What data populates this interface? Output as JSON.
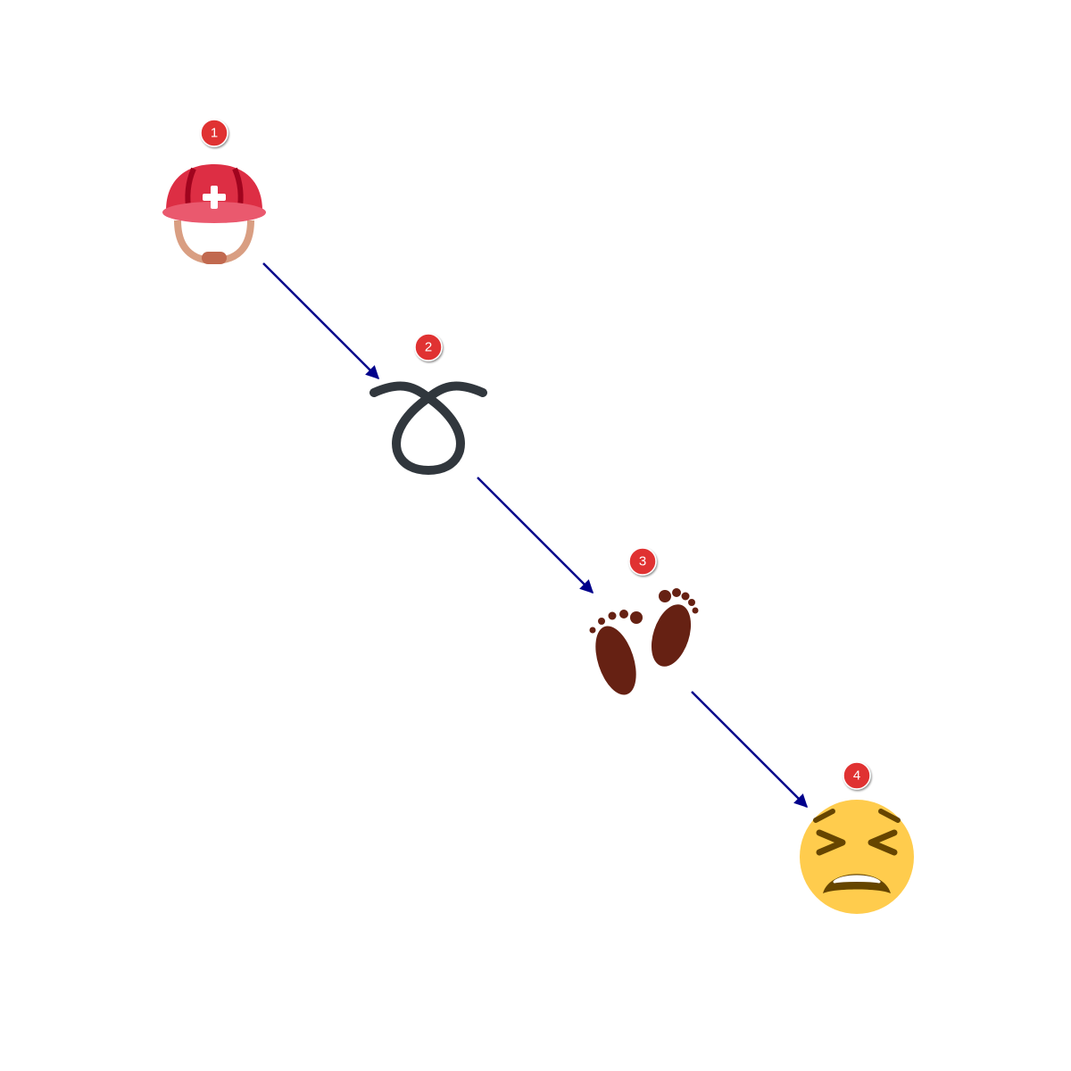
{
  "steps": [
    {
      "number": "1",
      "icon": "rescue-worker-helmet-icon"
    },
    {
      "number": "2",
      "icon": "curly-loop-icon"
    },
    {
      "number": "3",
      "icon": "footprints-icon"
    },
    {
      "number": "4",
      "icon": "tired-face-icon"
    }
  ],
  "colors": {
    "arrow": "#00008b",
    "badge_fill": "#e03131",
    "badge_text": "#ffffff"
  }
}
